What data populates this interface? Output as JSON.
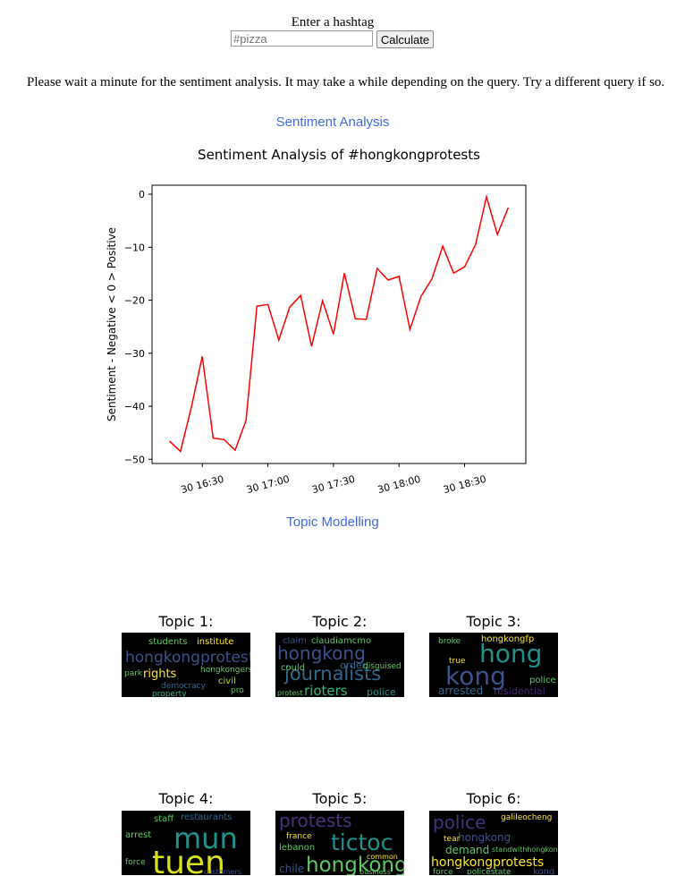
{
  "form": {
    "label": "Enter a hashtag",
    "placeholder": "#pizza",
    "button": "Calculate"
  },
  "notice": "Please wait a minute for the sentiment analysis. It may take a while depending on the query. Try a different query if so.",
  "sections": [
    "Sentiment Analysis",
    "Topic Modelling"
  ],
  "chart_data": {
    "type": "line",
    "title": "Sentiment Analysis of #hongkongprotests",
    "ylabel": "Sentiment - Negative < 0 > Positive",
    "x": [
      "30 16:15",
      "30 16:20",
      "30 16:25",
      "30 16:30",
      "30 16:35",
      "30 16:40",
      "30 16:45",
      "30 16:50",
      "30 16:55",
      "30 17:00",
      "30 17:05",
      "30 17:10",
      "30 17:15",
      "30 17:20",
      "30 17:25",
      "30 17:30",
      "30 17:35",
      "30 17:40",
      "30 17:45",
      "30 17:50",
      "30 17:55",
      "30 18:00",
      "30 18:05",
      "30 18:10",
      "30 18:15",
      "30 18:20",
      "30 18:25",
      "30 18:30",
      "30 18:35",
      "30 18:40",
      "30 18:45",
      "30 18:50"
    ],
    "values": [
      -46.6,
      -48.5,
      -40.2,
      -30.6,
      -46,
      -46.3,
      -48.3,
      -42.7,
      -21.1,
      -20.8,
      -27.5,
      -21.3,
      -19.1,
      -28.7,
      -20.1,
      -26.4,
      -14.9,
      -23.5,
      -23.6,
      -14,
      -16.2,
      -15.5,
      -25.5,
      -19.3,
      -16,
      -9.8,
      -14.9,
      -13.7,
      -9.5,
      -0.5,
      -7.6,
      -2.5
    ],
    "color": "#ff0000",
    "xlim": [
      "30 16:07",
      "30 18:58"
    ],
    "xticks": [
      "30 16:30",
      "30 17:00",
      "30 17:30",
      "30 18:00",
      "30 18:30"
    ],
    "ylim": [
      -50.8,
      1.7
    ],
    "yticks": [
      {
        "value": -50,
        "label": "−50"
      },
      {
        "value": -40,
        "label": "−40"
      },
      {
        "value": -30,
        "label": "−30"
      },
      {
        "value": -20,
        "label": "−20"
      },
      {
        "value": -10,
        "label": "−10"
      },
      0
    ],
    "grid": false
  },
  "topics": [
    {
      "title": "Topic 1:",
      "words": [
        "hongkongprotests",
        "students",
        "institute",
        "rights",
        "hongkongers",
        "civil",
        "democracy",
        "property",
        "park",
        "pro"
      ]
    },
    {
      "title": "Topic 2:",
      "words": [
        "claim",
        "claudiamcmo",
        "hongkong",
        "journalists",
        "rioters",
        "police",
        "order",
        "could",
        "disguised",
        "protest"
      ]
    },
    {
      "title": "Topic 3:",
      "words": [
        "hongkongfp",
        "hong",
        "kong",
        "arrested",
        "residential",
        "police",
        "true",
        "broke"
      ]
    },
    {
      "title": "Topic 4:",
      "words": [
        "staff",
        "restaurants",
        "mun",
        "tuen",
        "arrest",
        "customers",
        "force"
      ]
    },
    {
      "title": "Topic 5:",
      "words": [
        "protests",
        "france",
        "lebanon",
        "tictoc",
        "hongkong",
        "chile",
        "common",
        "business"
      ]
    },
    {
      "title": "Topic 6:",
      "words": [
        "police",
        "galileocheng",
        "hongkong",
        "tear",
        "demand",
        "standwithhongkong",
        "hongkongprotests",
        "force",
        "policestate",
        "kong"
      ]
    }
  ]
}
